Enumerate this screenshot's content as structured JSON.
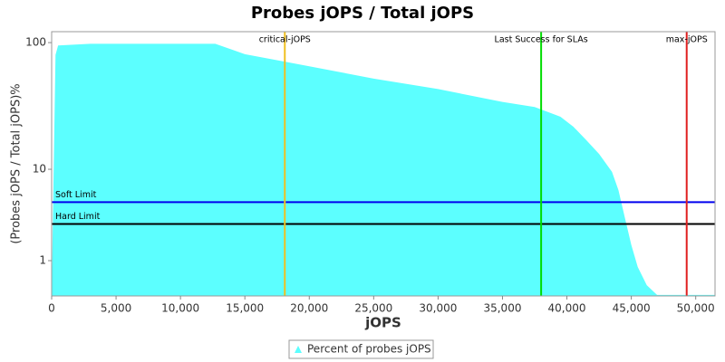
{
  "chart_data": {
    "type": "area",
    "title": "Probes jOPS / Total jOPS",
    "x_label": "jOPS",
    "y_label": "(Probes jOPS / Total jOPS)%",
    "y_scale": "log",
    "x": [
      0,
      300,
      500,
      3000,
      12700,
      15000,
      18000,
      20000,
      25000,
      30000,
      35000,
      37500,
      39500,
      40500,
      41500,
      42500,
      43500,
      44000,
      44500,
      45000,
      45500,
      46200,
      47000,
      51500
    ],
    "series": [
      {
        "name": "Percent of probes jOPS",
        "color": "#5cffff",
        "values": [
          0,
          80,
          95,
          98,
          98,
          81,
          71,
          65,
          52,
          43,
          34,
          31,
          26,
          21.7,
          17,
          13.2,
          9.5,
          6.5,
          3.5,
          1.7,
          0.77,
          0.24,
          0.02,
          0.02
        ]
      }
    ],
    "xlim": [
      0,
      51500
    ],
    "xticks": [
      0,
      {
        "value": 5000,
        "label": "5,000"
      },
      {
        "value": 10000,
        "label": "10,000"
      },
      {
        "value": 15000,
        "label": "15,000"
      },
      {
        "value": 20000,
        "label": "20,000"
      },
      {
        "value": 25000,
        "label": "25,000"
      },
      {
        "value": 30000,
        "label": "30,000"
      },
      {
        "value": 35000,
        "label": "35,000"
      },
      {
        "value": 40000,
        "label": "40,000"
      },
      {
        "value": 45000,
        "label": "45,000"
      },
      {
        "value": 50000,
        "label": "50,000"
      }
    ],
    "ylim": [
      0,
      122
    ],
    "yticks": [
      1,
      10,
      100
    ],
    "vertical_lines": [
      {
        "label": "critical-jOPS",
        "value": 18100,
        "color": "#f0c020"
      },
      {
        "label": "Last Success for SLAs",
        "value": 38000,
        "color": "#00dd00"
      },
      {
        "label": "max-jOPS",
        "value": 49300,
        "color": "#e02020"
      }
    ],
    "horizontal_lines": [
      {
        "label": "Soft Limit",
        "value": 5,
        "color": "#0000ee"
      },
      {
        "label": "Hard Limit",
        "value": 3,
        "color": "#000000"
      }
    ]
  }
}
